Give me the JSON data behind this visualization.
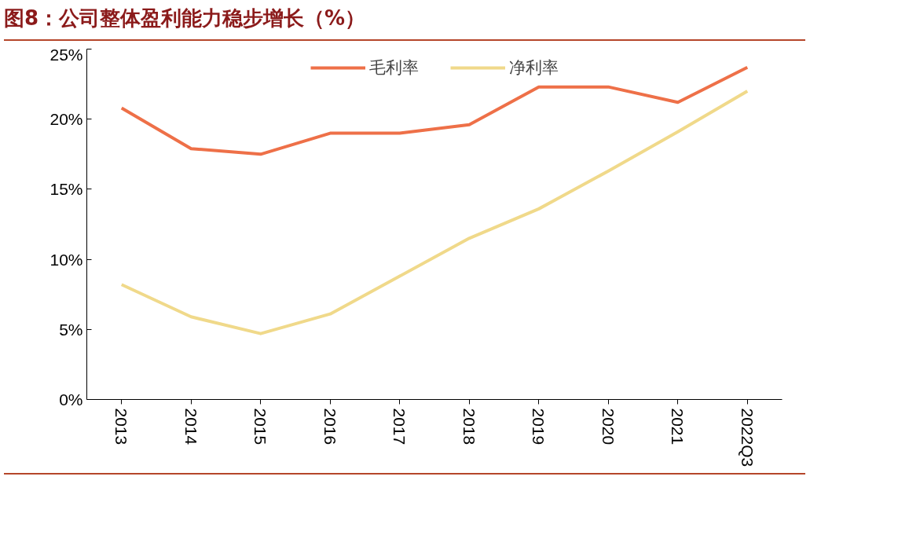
{
  "chart_data": {
    "type": "line",
    "title": "图8：公司整体盈利能力稳步增长（%）",
    "categories": [
      "2013",
      "2014",
      "2015",
      "2016",
      "2017",
      "2018",
      "2019",
      "2020",
      "2021",
      "2022Q3"
    ],
    "series": [
      {
        "name": "毛利率",
        "color": "#ee7048",
        "values": [
          20.8,
          17.9,
          17.5,
          19.0,
          19.0,
          19.6,
          22.3,
          22.3,
          21.2,
          23.7
        ]
      },
      {
        "name": "净利率",
        "color": "#f0d98a",
        "values": [
          8.2,
          5.9,
          4.7,
          6.1,
          8.8,
          11.5,
          13.6,
          16.3,
          19.1,
          22.0
        ]
      }
    ],
    "ylim": [
      0,
      25
    ],
    "yticks": [
      {
        "value": 0,
        "label": "0%"
      },
      {
        "value": 5,
        "label": "5%"
      },
      {
        "value": 10,
        "label": "10%"
      },
      {
        "value": 15,
        "label": "15%"
      },
      {
        "value": 20,
        "label": "20%"
      },
      {
        "value": 25,
        "label": "25%"
      }
    ],
    "grid": false,
    "legend": "top",
    "marker": "none",
    "line_style": "solid"
  }
}
